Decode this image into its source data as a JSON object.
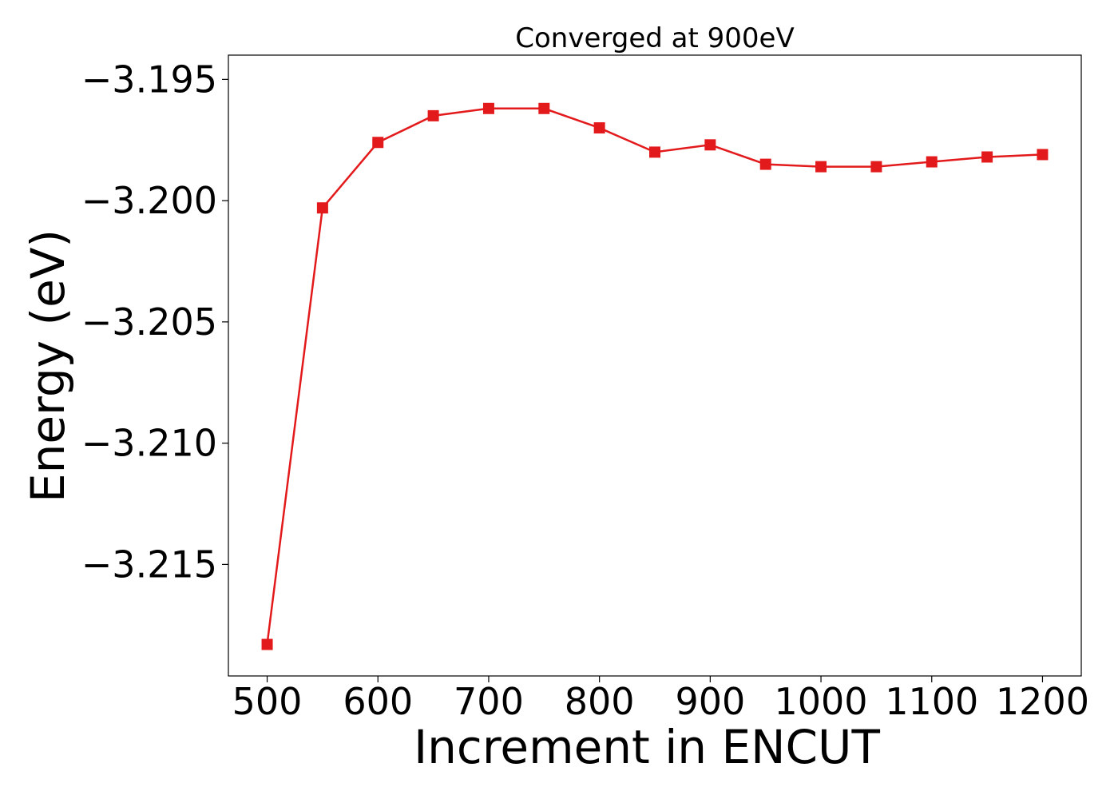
{
  "chart_data": {
    "type": "line",
    "title": "Converged at 900eV",
    "xlabel": "Increment in ENCUT",
    "ylabel": "Energy (eV)",
    "x": [
      500,
      550,
      600,
      650,
      700,
      750,
      800,
      850,
      900,
      950,
      1000,
      1050,
      1100,
      1150,
      1200
    ],
    "series": [
      {
        "values": [
          -3.2183,
          -3.2003,
          -3.1976,
          -3.1965,
          -3.1962,
          -3.1962,
          -3.197,
          -3.198,
          -3.1977,
          -3.1985,
          -3.1986,
          -3.1986,
          -3.1984,
          -3.1982,
          -3.1981
        ],
        "color": "#e31a1c",
        "marker": "square"
      }
    ],
    "xticks": [
      500,
      600,
      700,
      800,
      900,
      1000,
      1100,
      1200
    ],
    "xtick_labels": [
      "500",
      "600",
      "700",
      "800",
      "900",
      "1000",
      "1100",
      "1200"
    ],
    "yticks": [
      -3.195,
      -3.2,
      -3.205,
      -3.21,
      -3.215
    ],
    "ytick_labels": [
      "−3.195",
      "−3.200",
      "−3.205",
      "−3.210",
      "−3.215"
    ],
    "xlim": [
      465,
      1235
    ],
    "ylim": [
      -3.2196,
      -3.194
    ],
    "grid": false,
    "legend": "none"
  }
}
